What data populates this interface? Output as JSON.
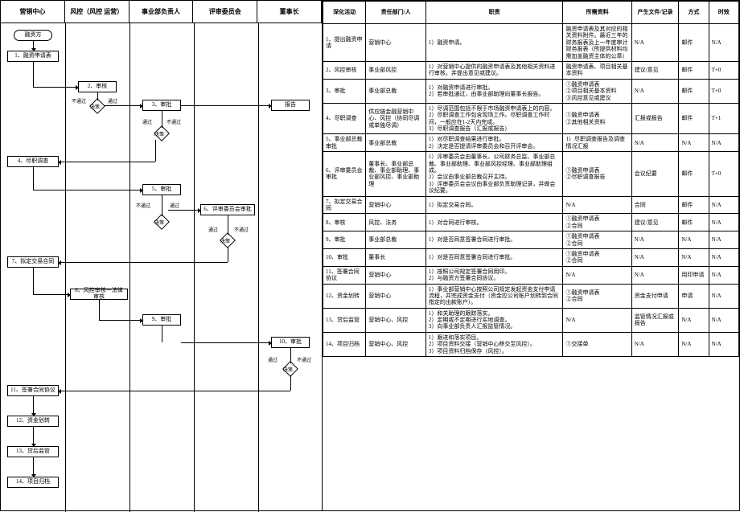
{
  "flowchart": {
    "lanes": [
      "营销中心",
      "风控（风控 运营）",
      "事业部负责人",
      "评审委员会",
      "董事长"
    ],
    "nodes": {
      "start": "融资方",
      "n1": "1、融资申请表",
      "n2": "2、审核",
      "n3": "3、审批",
      "n4": "4、尽职调查",
      "n5": "5、审批",
      "n6": "6、评审委员会审批",
      "n7": "7、拟定交易合同",
      "n8": "8、风控审核一法律审核",
      "n9": "9、审批",
      "n10": "10、审批",
      "n11": "11、签署合同协议",
      "n12": "12、资金划转",
      "n13": "13、贷后监管",
      "n14": "14、项目归档",
      "report": "报告"
    },
    "edge_labels": {
      "pass": "通过",
      "nopass": "不通过",
      "decision": "决策"
    }
  },
  "table": {
    "headers": [
      "深化活动",
      "责任部门/人",
      "职责",
      "所需资料",
      "产生文件/记录",
      "方式",
      "时效"
    ],
    "rows": [
      {
        "act": "1、提出融资申请",
        "dep": "营销中心",
        "job": "1）融资申请。",
        "res": "融资申请表及其对应的相关资料附件。最近三年的财务报表及上一年度审计财务报表（所提供材料均需加盖融资主体的公章）",
        "out": "N/A",
        "mth": "邮件",
        "tim": "N/A"
      },
      {
        "act": "2、风控审核",
        "dep": "事业部风控",
        "job": "1）对营销中心提供的融资申请表及其他相关资料进行审核，并提出意见或建议。",
        "res": "融资申请表、项目相关基本资料",
        "out": "建议/意见",
        "mth": "邮件",
        "tim": "T+0"
      },
      {
        "act": "3、审批",
        "dep": "事业部总裁",
        "job": "1）对融资申请进行审批。\n2）若审批通过，由事业部助理向董事长报告。",
        "res": "①融资申请表\n②项目相关基本资料\n③风控意见或建议",
        "out": "N/A",
        "mth": "邮件",
        "tim": "T+0"
      },
      {
        "act": "4、尽职调查",
        "dep": "供应链金融营销中心、风控（协同尽调或单独尽调）",
        "job": "1）尽调范围包括不限于市场融资申请表上的内容。\n2）尽职调查工作包含现场工作。尽职调查工作时间，一般应在1-2天内完成。\n3）尽职调查报告（汇报或报告）",
        "res": "①融资申请表\n②其他相关资料",
        "out": "汇报或报告",
        "mth": "邮件",
        "tim": "T+1"
      },
      {
        "act": "5、事业部总裁审批",
        "dep": "事业部总裁",
        "job": "1）对尽职调查结果进行审批。\n2）决定是否提请评审委员会和召开评审会。",
        "res": "1）尽职调查报告及调查情况汇报",
        "out": "N/A",
        "mth": "N/A",
        "tim": "N/A"
      },
      {
        "act": "6、评审委员会审批",
        "dep": "董事长、事业部总裁、事业部助理、事业部风控、事业部助理",
        "job": "1）评审委员会由董事长、公司财务总监、事业部总裁、事业部助理、事业部风控经理、事业部助理组成。\n2）会议由事业部总裁召开主持。\n3）评审委员会会议由事业部负责助理记录，并做会议纪要。",
        "res": "①融资申请表\n②尽职调查报告",
        "out": "会议纪要",
        "mth": "邮件",
        "tim": "T+0"
      },
      {
        "act": "7、拟定交易合同",
        "dep": "营销中心",
        "job": "1）拟定交易合同。",
        "res": "N/A",
        "out": "合同",
        "mth": "邮件",
        "tim": "N/A"
      },
      {
        "act": "8、审核",
        "dep": "风控、法务",
        "job": "1）对合同进行审核。",
        "res": "①融资申请表\n②合同",
        "out": "建议/意见",
        "mth": "邮件",
        "tim": "N/A"
      },
      {
        "act": "9、审批",
        "dep": "事业部总裁",
        "job": "1）对是否同意签署合同进行审批。",
        "res": "①融资申请表\n②合同",
        "out": "N/A",
        "mth": "N/A",
        "tim": "N/A"
      },
      {
        "act": "10、审批",
        "dep": "董事长",
        "job": "1）对是否同意签署合同进行审批。",
        "res": "①融资申请表\n②合同",
        "out": "N/A",
        "mth": "N/A",
        "tim": "N/A"
      },
      {
        "act": "11、签署合同协议",
        "dep": "营销中心",
        "job": "1）按照公司规定签署合同用印。\n2）与融资方签署合同协议。",
        "res": "N/A",
        "out": "N/A",
        "mth": "用印申请",
        "tim": "N/A"
      },
      {
        "act": "12、资金划转",
        "dep": "营销中心",
        "job": "1）事业部营销中心按照公司规定发起资金支付申请流程，并完成资金支付（资金应公司账户划转到合同指定的出款账户）。",
        "res": "①融资申请表\n②合同",
        "out": "资金支付申请",
        "mth": "申请",
        "tim": "N/A"
      },
      {
        "act": "13、贷后监管",
        "dep": "营销中心、风控",
        "job": "1）和关助理的跟踪落实。\n2）定期或不定期进行实地调查。\n3）向事业部负责人汇报监管情况。",
        "res": "N/A",
        "out": "监管情况汇报或报告",
        "mth": "N/A",
        "tim": "N/A"
      },
      {
        "act": "14、项目归档",
        "dep": "营销中心、风控",
        "job": "1）跟进和落实项目。\n2）项目资料交接（营销中心移交至风控）。\n3）项目资料归档保存（风控）。",
        "res": "①交接单",
        "out": "N/A",
        "mth": "N/A",
        "tim": "N/A"
      }
    ]
  }
}
